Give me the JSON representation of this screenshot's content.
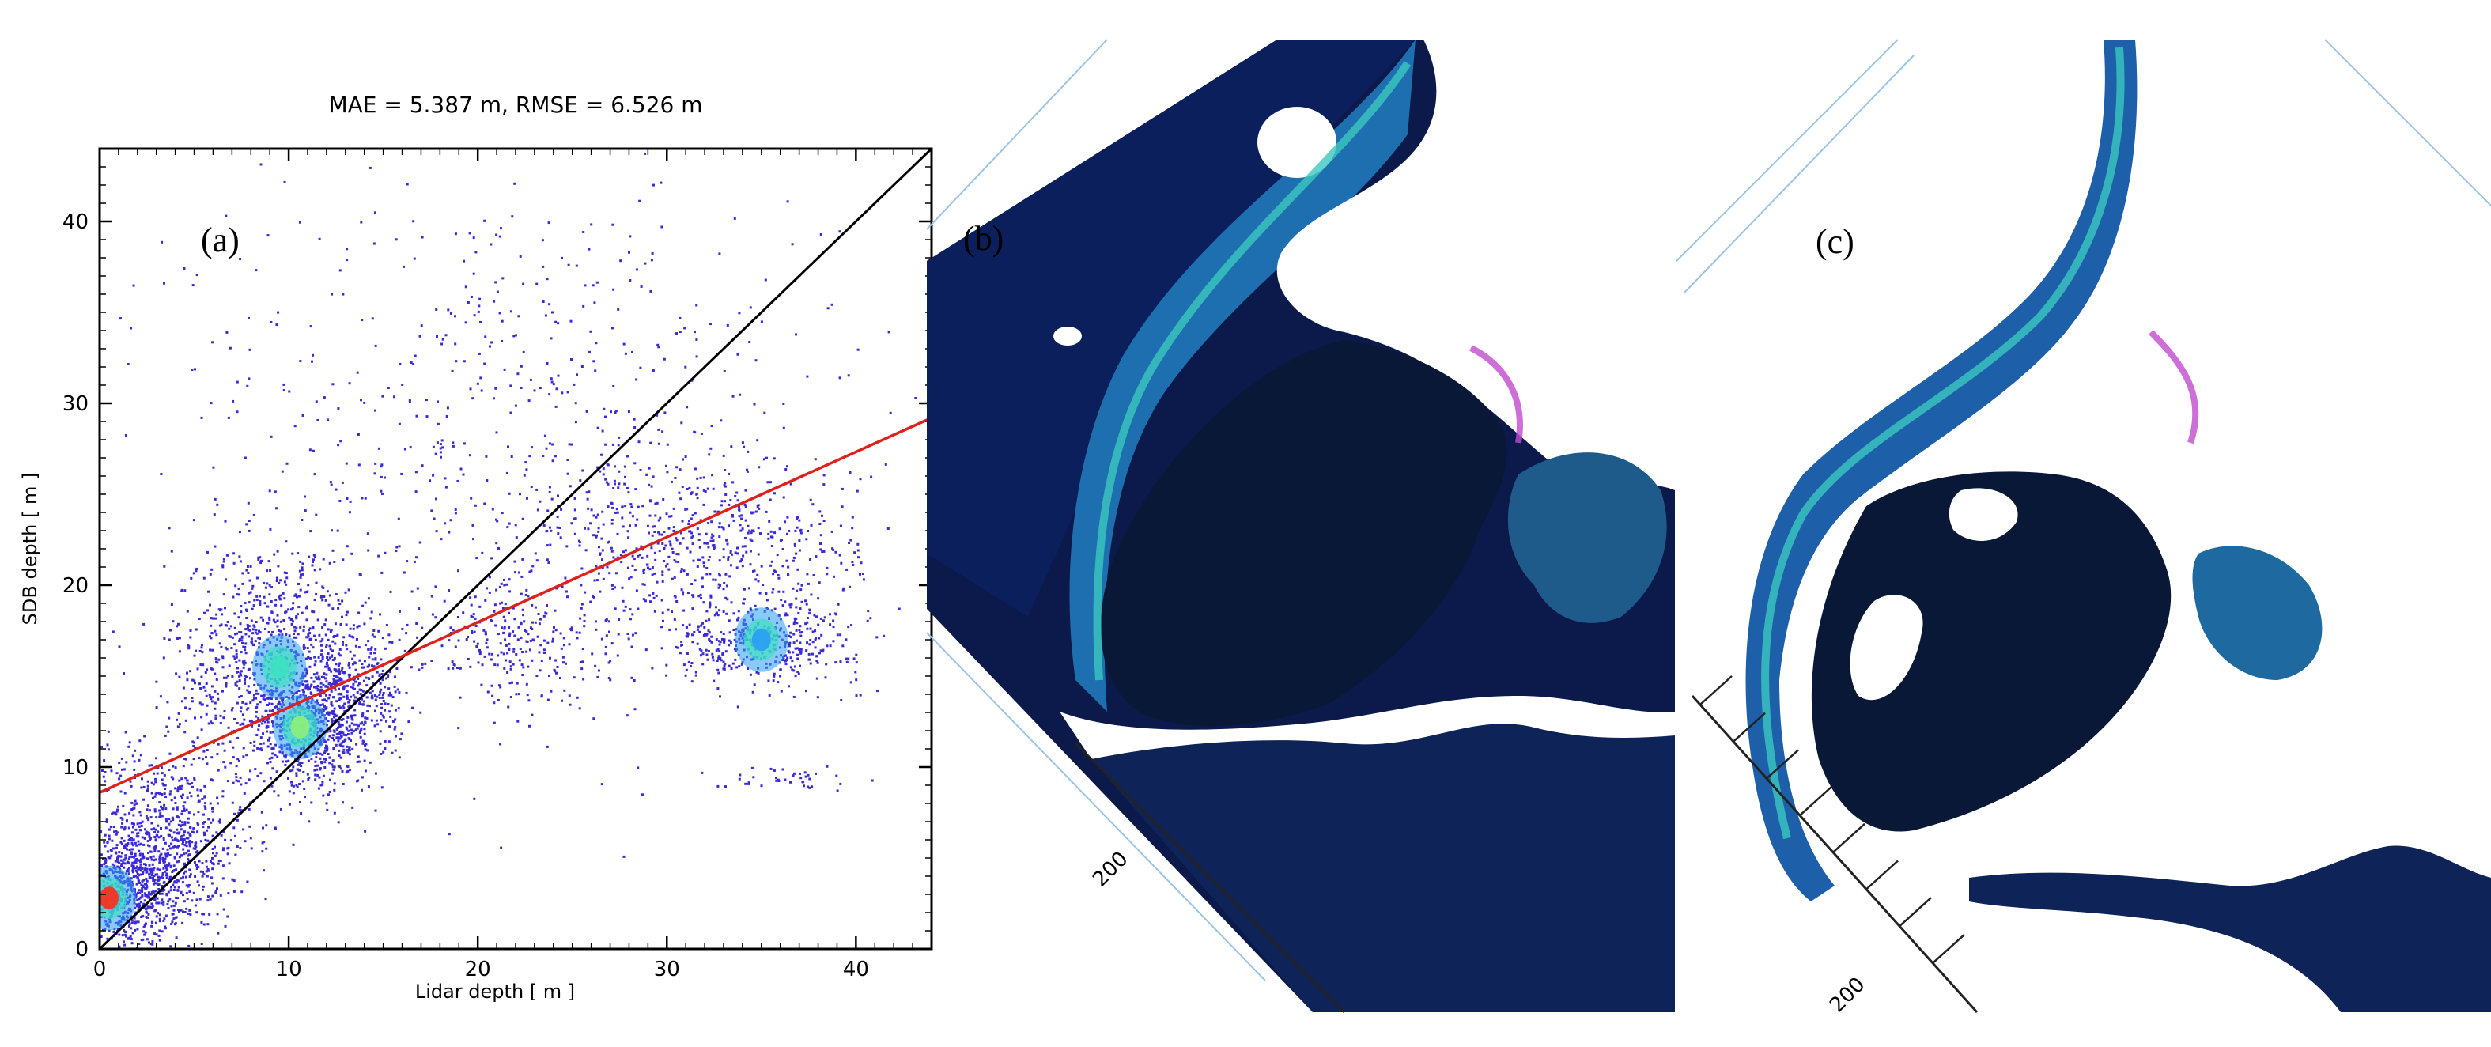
{
  "chart_data": {
    "type": "scatter",
    "title": "MAE = 5.387 m, RMSE = 6.526 m",
    "xlabel": "Lidar depth [ m ]",
    "ylabel": "SDB depth [ m ]",
    "xlim": [
      0,
      44
    ],
    "ylim": [
      0,
      44
    ],
    "xticks": [
      0,
      10,
      20,
      30,
      40
    ],
    "yticks": [
      0,
      10,
      20,
      30,
      40
    ],
    "panel_label": "(a)",
    "grid": false,
    "identity_line": {
      "x": [
        0,
        44
      ],
      "y": [
        0,
        44
      ],
      "color": "#000000"
    },
    "regression_line": {
      "x": [
        0,
        44
      ],
      "y": [
        8.6,
        29.2
      ],
      "color": "#e0201b"
    },
    "point_color": "#3a2bd6",
    "density_colors": [
      "#3a2bd6",
      "#2a9df4",
      "#3ee0c0",
      "#8ef07a",
      "#ff2a1a"
    ],
    "clusters": [
      {
        "x": 1,
        "y": 3,
        "spread": [
          1.6,
          1.4
        ],
        "count": 700
      },
      {
        "x": 3,
        "y": 6,
        "spread": [
          2.5,
          2.5
        ],
        "count": 900
      },
      {
        "x": 9,
        "y": 16,
        "spread": [
          2.6,
          3.2
        ],
        "count": 900
      },
      {
        "x": 11,
        "y": 12,
        "spread": [
          1.8,
          1.6
        ],
        "count": 500
      },
      {
        "x": 13,
        "y": 14,
        "spread": [
          1.5,
          1.8
        ],
        "count": 350
      },
      {
        "x": 22,
        "y": 17,
        "spread": [
          2.4,
          1.8
        ],
        "count": 250
      },
      {
        "x": 32,
        "y": 22,
        "spread": [
          4.0,
          2.4
        ],
        "count": 550
      },
      {
        "x": 35,
        "y": 17,
        "spread": [
          2.6,
          1.1
        ],
        "count": 400
      },
      {
        "x": 22,
        "y": 28,
        "spread": [
          8.5,
          8.0
        ],
        "count": 700
      },
      {
        "x": 36,
        "y": 9.4,
        "spread": [
          2.0,
          0.3
        ],
        "count": 40
      }
    ],
    "hotspots": [
      {
        "x": 0.5,
        "y": 2.8,
        "color": "#ff2a1a"
      },
      {
        "x": 10.6,
        "y": 12.2,
        "color": "#8ef07a"
      },
      {
        "x": 9.5,
        "y": 15.5,
        "color": "#3ee0c0"
      },
      {
        "x": 35,
        "y": 17,
        "color": "#2a9df4"
      }
    ]
  },
  "panels": {
    "b": {
      "label": "(b)",
      "scale_tick_label": "200"
    },
    "c": {
      "label": "(c)",
      "scale_tick_label": "200"
    }
  },
  "colors": {
    "deep_water": "#0b1a4a",
    "mid_water": "#123a7a",
    "shallow_water": "#2f9fd0",
    "reef_cyan": "#3cc8c0",
    "reef_magenta": "#c04ad0",
    "lagoon": "#0a1838",
    "land": "#ffffff"
  }
}
